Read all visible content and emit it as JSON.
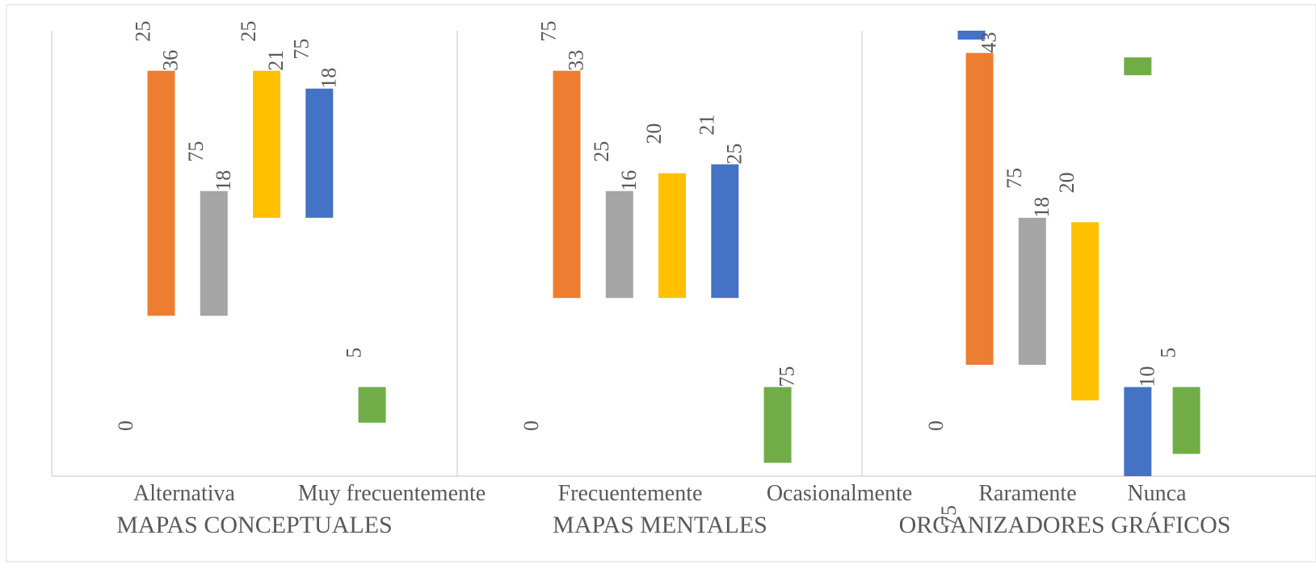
{
  "chart_data": {
    "type": "bar",
    "colors": {
      "orange": "#ED7D31",
      "gray": "#A5A5A5",
      "yellow": "#FFC000",
      "blue": "#4472C4",
      "green": "#70AD47",
      "label_text": "#595959",
      "axis_text": "#404040",
      "grid": "#D9D9D9",
      "frame": "#D9D9D9"
    },
    "x_categories": [
      "Alternativa",
      "Muy frecuentemente",
      "Frecuentemente",
      "Ocasionalmente",
      "Raramente",
      "Nunca"
    ],
    "group_titles": [
      "MAPAS CONCEPTUALES",
      "MAPAS MENTALES",
      "ORGANIZADORES GRÁFICOS"
    ],
    "groups": [
      {
        "title": "MAPAS CONCEPTUALES",
        "zero_label": "0",
        "bars": [
          {
            "series": "orange",
            "low": 0.36,
            "high": 0.91,
            "label": "25"
          },
          {
            "series": "orange",
            "low": 0.36,
            "high": 0.91,
            "label": "36"
          },
          {
            "series": "gray",
            "low": 0.36,
            "high": 0.64,
            "label": "75"
          },
          {
            "series": "gray",
            "low": 0.36,
            "high": 0.64,
            "label": "18"
          },
          {
            "series": "yellow",
            "low": 0.58,
            "high": 0.91,
            "label": "25"
          },
          {
            "series": "yellow",
            "low": 0.58,
            "high": 0.91,
            "label": "21"
          },
          {
            "series": "blue",
            "low": 0.58,
            "high": 0.87,
            "label": "75"
          },
          {
            "series": "blue",
            "low": 0.58,
            "high": 0.87,
            "label": "18"
          },
          {
            "series": "green",
            "low": 0.12,
            "high": 0.2,
            "label": "5"
          }
        ]
      },
      {
        "title": "MAPAS MENTALES",
        "zero_label": "0",
        "bars": [
          {
            "series": "orange",
            "low": 0.4,
            "high": 0.91,
            "label": "75"
          },
          {
            "series": "orange",
            "low": 0.4,
            "high": 0.91,
            "label": "33"
          },
          {
            "series": "gray",
            "low": 0.4,
            "high": 0.64,
            "label": "25"
          },
          {
            "series": "gray",
            "low": 0.4,
            "high": 0.64,
            "label": "16"
          },
          {
            "series": "yellow",
            "low": 0.4,
            "high": 0.68,
            "label": "20"
          },
          {
            "series": "blue",
            "low": 0.4,
            "high": 0.7,
            "label": "25"
          },
          {
            "series": "blue",
            "low": 0.4,
            "high": 0.7,
            "label": "21"
          },
          {
            "series": "green",
            "low": 0.03,
            "high": 0.2,
            "label": "75"
          }
        ]
      },
      {
        "title": "ORGANIZADORES GRÁFICOS",
        "zero_label": "0",
        "bars": [
          {
            "series": "blue",
            "low": 0.98,
            "high": 1.0,
            "label": ""
          },
          {
            "series": "orange",
            "low": 0.25,
            "high": 0.95,
            "label": "43"
          },
          {
            "series": "gray",
            "low": 0.25,
            "high": 0.58,
            "label": "75"
          },
          {
            "series": "gray",
            "low": 0.25,
            "high": 0.58,
            "label": "18"
          },
          {
            "series": "yellow",
            "low": 0.17,
            "high": 0.57,
            "label": "20"
          },
          {
            "series": "blue",
            "low": 0.0,
            "high": 0.2,
            "label": "10"
          },
          {
            "series": "green",
            "low": 0.05,
            "high": 0.2,
            "label": "5"
          },
          {
            "series": "green",
            "low": 0.9,
            "high": 0.94,
            "label": ""
          }
        ]
      }
    ],
    "bottom_labels": [
      "Alternativa",
      "Muy frecuentemente",
      "Frecuentemente",
      "Ocasionalmente",
      "Raramente",
      "Nunca"
    ],
    "stray_label": "75"
  }
}
